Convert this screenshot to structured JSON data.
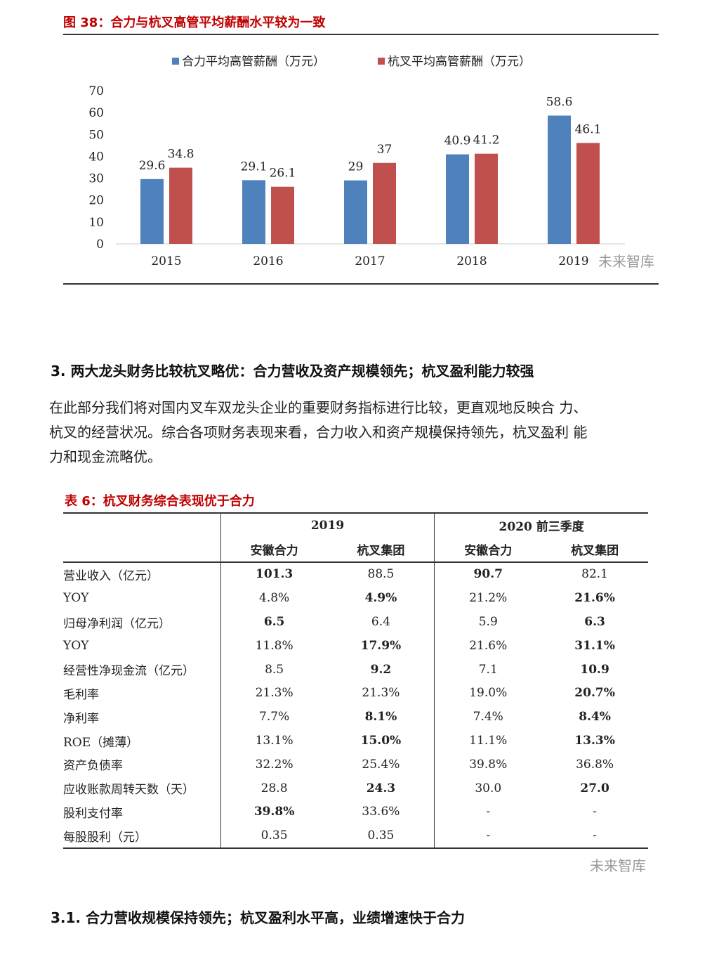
{
  "figure": {
    "title": "图 38：合力与杭叉高管平均薪酬水平较为一致"
  },
  "chart_data": {
    "type": "bar",
    "categories": [
      "2015",
      "2016",
      "2017",
      "2018",
      "2019"
    ],
    "series": [
      {
        "name": "合力平均高管薪酬（万元）",
        "color": "#4f81bd",
        "values": [
          29.6,
          29.1,
          29,
          40.9,
          58.6
        ]
      },
      {
        "name": "杭叉平均高管薪酬（万元）",
        "color": "#c0504d",
        "values": [
          34.8,
          26.1,
          37,
          41.2,
          46.1
        ]
      }
    ],
    "ylim": [
      0,
      70
    ],
    "yticks": [
      "0",
      "10",
      "20",
      "30",
      "40",
      "50",
      "60",
      "70"
    ],
    "legend": "top",
    "grid": false
  },
  "watermark": "未来智库",
  "section3": {
    "heading": "3. 两大龙头财务比较杭叉略优：合力营收及资产规模领先；杭叉盈利能力较强",
    "para_lines": [
      "在此部分我们将对国内叉车双龙头企业的重要财务指标进行比较，更直观地反映合 力、",
      "杭叉的经营状况。综合各项财务表现来看，合力收入和资产规模保持领先，杭叉盈利 能",
      "力和现金流略优。"
    ]
  },
  "table": {
    "title": "表 6：杭叉财务综合表现优于合力",
    "groups": [
      "2019",
      "2020 前三季度"
    ],
    "subheads": [
      "安徽合力",
      "杭叉集团",
      "安徽合力",
      "杭叉集团"
    ],
    "rows": [
      {
        "label": "营业收入（亿元）",
        "cells": [
          "101.3",
          "88.5",
          "90.7",
          "82.1"
        ],
        "bold": [
          true,
          false,
          true,
          false
        ]
      },
      {
        "label": "YOY",
        "cells": [
          "4.8%",
          "4.9%",
          "21.2%",
          "21.6%"
        ],
        "bold": [
          false,
          true,
          false,
          true
        ]
      },
      {
        "label": "归母净利润（亿元）",
        "cells": [
          "6.5",
          "6.4",
          "5.9",
          "6.3"
        ],
        "bold": [
          true,
          false,
          false,
          true
        ]
      },
      {
        "label": "YOY",
        "cells": [
          "11.8%",
          "17.9%",
          "21.6%",
          "31.1%"
        ],
        "bold": [
          false,
          true,
          false,
          true
        ]
      },
      {
        "label": "经营性净现金流（亿元）",
        "cells": [
          "8.5",
          "9.2",
          "7.1",
          "10.9"
        ],
        "bold": [
          false,
          true,
          false,
          true
        ]
      },
      {
        "label": "毛利率",
        "cells": [
          "21.3%",
          "21.3%",
          "19.0%",
          "20.7%"
        ],
        "bold": [
          false,
          false,
          false,
          true
        ]
      },
      {
        "label": "净利率",
        "cells": [
          "7.7%",
          "8.1%",
          "7.4%",
          "8.4%"
        ],
        "bold": [
          false,
          true,
          false,
          true
        ]
      },
      {
        "label": "ROE（摊薄）",
        "cells": [
          "13.1%",
          "15.0%",
          "11.1%",
          "13.3%"
        ],
        "bold": [
          false,
          true,
          false,
          true
        ]
      },
      {
        "label": "资产负债率",
        "cells": [
          "32.2%",
          "25.4%",
          "39.8%",
          "36.8%"
        ],
        "bold": [
          false,
          false,
          false,
          false
        ]
      },
      {
        "label": "应收账款周转天数（天）",
        "cells": [
          "28.8",
          "24.3",
          "30.0",
          "27.0"
        ],
        "bold": [
          false,
          true,
          false,
          true
        ]
      },
      {
        "label": "股利支付率",
        "cells": [
          "39.8%",
          "33.6%",
          "-",
          "-"
        ],
        "bold": [
          true,
          false,
          false,
          false
        ]
      },
      {
        "label": "每股股利（元）",
        "cells": [
          "0.35",
          "0.35",
          "-",
          "-"
        ],
        "bold": [
          false,
          false,
          false,
          false
        ]
      }
    ]
  },
  "section31": {
    "heading": "3.1. 合力营收规模保持领先；杭叉盈利水平高，业绩增速快于合力"
  }
}
